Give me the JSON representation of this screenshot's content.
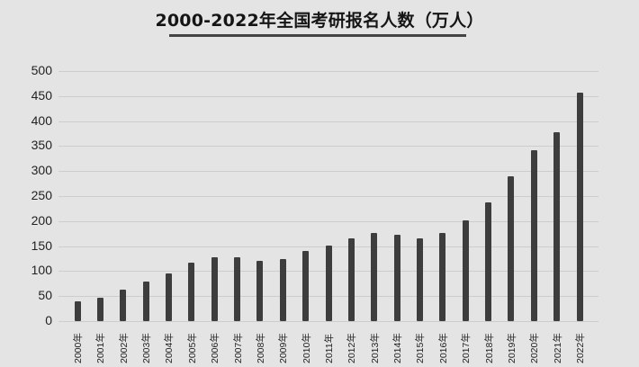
{
  "title": "2000-2022年全国考研报名人数（万人）",
  "chart_data": {
    "type": "bar",
    "title": "2000-2022年全国考研报名人数（万人）",
    "xlabel": "",
    "ylabel": "",
    "ylim": [
      0,
      500
    ],
    "yticks": [
      0,
      50,
      100,
      150,
      200,
      250,
      300,
      350,
      400,
      450,
      500
    ],
    "grid": true,
    "legend": null,
    "categories": [
      "2000年",
      "2001年",
      "2002年",
      "2003年",
      "2004年",
      "2005年",
      "2006年",
      "2007年",
      "2008年",
      "2009年",
      "2010年",
      "2011年",
      "2012年",
      "2013年",
      "2014年",
      "2015年",
      "2016年",
      "2017年",
      "2018年",
      "2019年",
      "2020年",
      "2021年",
      "2022年"
    ],
    "values": [
      39.2,
      46,
      62.4,
      79.9,
      94.5,
      117.2,
      127.1,
      128.2,
      120,
      124.6,
      140,
      151.1,
      165.6,
      176,
      172,
      164.9,
      177,
      201,
      238,
      290,
      341,
      377,
      457
    ],
    "bar_color": "#3d3d3d",
    "background_color": "#e4e4e4"
  }
}
